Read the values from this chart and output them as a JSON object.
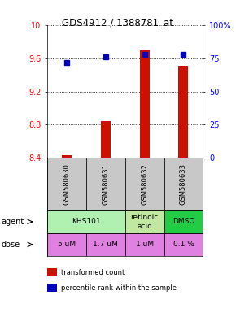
{
  "title": "GDS4912 / 1388781_at",
  "samples": [
    "GSM580630",
    "GSM580631",
    "GSM580632",
    "GSM580633"
  ],
  "bar_values": [
    8.43,
    8.84,
    9.69,
    9.51
  ],
  "percentile_values": [
    72,
    76,
    78,
    78
  ],
  "ylim": [
    8.4,
    10.0
  ],
  "yticks": [
    8.4,
    8.8,
    9.2,
    9.6,
    10.0
  ],
  "ytick_labels": [
    "8.4",
    "8.8",
    "9.2",
    "9.6",
    "10"
  ],
  "right_yticks": [
    0,
    25,
    50,
    75,
    100
  ],
  "right_ytick_labels": [
    "0",
    "25",
    "50",
    "75",
    "100%"
  ],
  "agent_groups": [
    {
      "cols": [
        0,
        1
      ],
      "label": "KHS101",
      "color": "#b0f0b0"
    },
    {
      "cols": [
        2
      ],
      "label": "retinoic\nacid",
      "color": "#c0e8a0"
    },
    {
      "cols": [
        3
      ],
      "label": "DMSO",
      "color": "#22cc44"
    }
  ],
  "dose_labels": [
    "5 uM",
    "1.7 uM",
    "1 uM",
    "0.1 %"
  ],
  "dose_color": "#e080e0",
  "bar_color": "#cc1100",
  "percentile_color": "#0000bb",
  "sample_bg_color": "#c8c8c8",
  "legend_bar_label": "transformed count",
  "legend_pct_label": "percentile rank within the sample"
}
